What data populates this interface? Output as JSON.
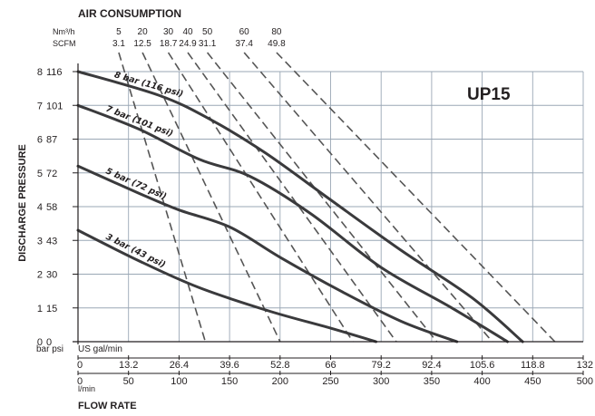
{
  "chart_data": {
    "type": "line",
    "title": "UP15",
    "section_title": "AIR CONSUMPTION",
    "xlabel": "FLOW RATE",
    "ylabel": "DISCHARGE PRESSURE",
    "grid": true,
    "x_primary": {
      "unit": "l/min",
      "range": [
        0,
        500
      ],
      "ticks": [
        "0",
        "50",
        "100",
        "150",
        "200",
        "250",
        "300",
        "350",
        "400",
        "450",
        "500"
      ]
    },
    "x_secondary": {
      "unit": "US gal/min",
      "ticks": [
        "0",
        "13.2",
        "26.4",
        "39.6",
        "52.8",
        "66",
        "79.2",
        "92.4",
        "105.6",
        "118.8",
        "132"
      ]
    },
    "y_primary": {
      "unit": "bar",
      "range": [
        0,
        8
      ],
      "ticks": [
        "0",
        "1",
        "2",
        "3",
        "4",
        "5",
        "6",
        "7",
        "8"
      ]
    },
    "y_secondary": {
      "unit": "psi",
      "ticks": [
        "0",
        "15",
        "30",
        "43",
        "58",
        "72",
        "87",
        "101",
        "116"
      ]
    },
    "air_consumption": {
      "nm3h_label": "Nm³/h",
      "scfm_label": "SCFM",
      "nm3h": [
        "5",
        "20",
        "30",
        "40",
        "50",
        "60",
        "80"
      ],
      "scfm": [
        "3.1",
        "12.5",
        "18.7",
        "24.9",
        "31.1",
        "37.4",
        "49.8"
      ]
    },
    "series": [
      {
        "name": "8 bar (116 psi)",
        "x": [
          0,
          80,
          130,
          185,
          250,
          320,
          390,
          440
        ],
        "y": [
          8,
          7.3,
          6.6,
          5.6,
          4.2,
          2.7,
          1.3,
          0
        ]
      },
      {
        "name": "7 bar (101 psi)",
        "x": [
          0,
          60,
          120,
          170,
          230,
          300,
          370,
          425
        ],
        "y": [
          7,
          6.3,
          5.4,
          4.9,
          3.8,
          2.2,
          1.0,
          0
        ]
      },
      {
        "name": "5 bar (72 psi)",
        "x": [
          0,
          60,
          100,
          150,
          200,
          260,
          320,
          375
        ],
        "y": [
          5.2,
          4.4,
          3.9,
          3.4,
          2.5,
          1.5,
          0.6,
          0
        ]
      },
      {
        "name": "3 bar (43 psi)",
        "x": [
          0,
          60,
          120,
          190,
          250,
          295
        ],
        "y": [
          3.3,
          2.4,
          1.6,
          0.9,
          0.4,
          0
        ]
      }
    ],
    "air_lines": [
      {
        "label": "5",
        "x": [
          43,
          126
        ],
        "y": [
          8.3,
          0
        ]
      },
      {
        "label": "20",
        "x": [
          68,
          200
        ],
        "y": [
          8.3,
          0
        ]
      },
      {
        "label": "30",
        "x": [
          95,
          272
        ],
        "y": [
          8.3,
          0
        ]
      },
      {
        "label": "40",
        "x": [
          115,
          315
        ],
        "y": [
          8.3,
          0
        ]
      },
      {
        "label": "50",
        "x": [
          135,
          355
        ],
        "y": [
          8.3,
          0
        ]
      },
      {
        "label": "60",
        "x": [
          172,
          410
        ],
        "y": [
          8.3,
          0
        ]
      },
      {
        "label": "80",
        "x": [
          205,
          472
        ],
        "y": [
          8.3,
          0
        ]
      }
    ]
  },
  "axis_unit_labels": {
    "bar_psi": "bar psi",
    "gal": "US gal/min",
    "lmin": "l/min"
  }
}
